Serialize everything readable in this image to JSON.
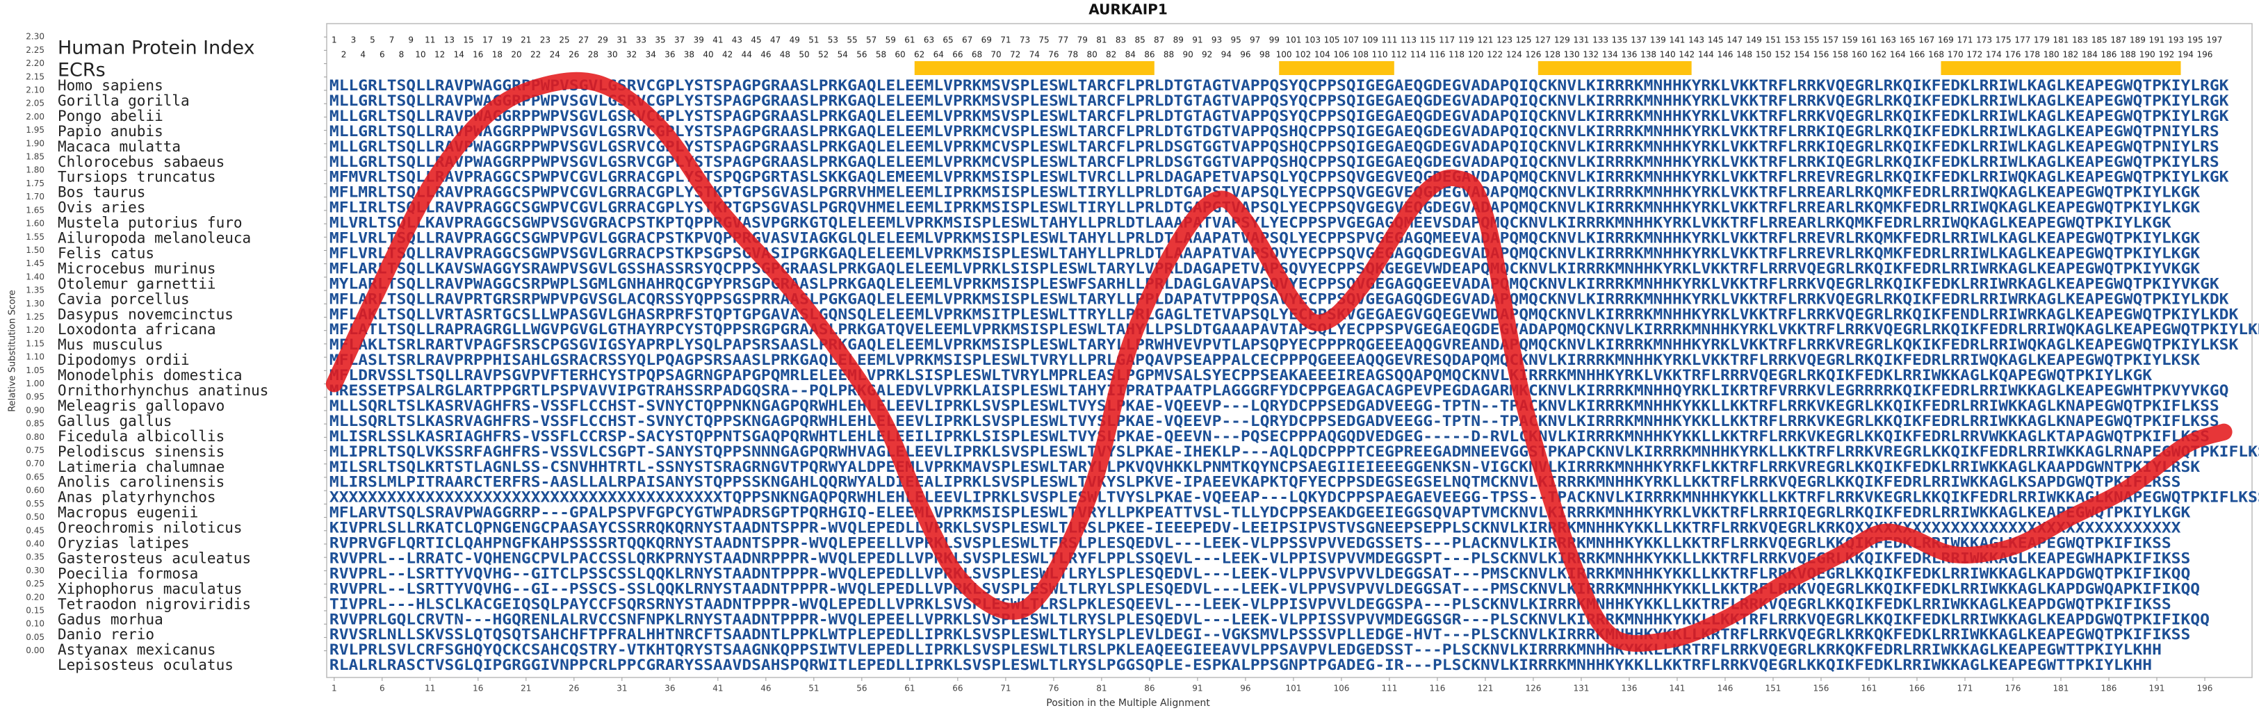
{
  "chart_data": {
    "type": "line",
    "title": "AURKAIP1",
    "xlabel": "Position in the Multiple Alignment",
    "ylabel": "Relative Substitution Score",
    "x": [
      1,
      5,
      11,
      17,
      23,
      29,
      35,
      41,
      47,
      52,
      58,
      62,
      66,
      71,
      75,
      80,
      84,
      89,
      93,
      96,
      101,
      104,
      108,
      114,
      118,
      121,
      125,
      130,
      134,
      140,
      146,
      152,
      158,
      162,
      165,
      170,
      176,
      182,
      188,
      194,
      198
    ],
    "series": [
      {
        "name": "Relative Substitution Score",
        "color": "#e41a1c",
        "values": [
          1.0,
          1.31,
          1.74,
          2.01,
          2.12,
          2.12,
          1.96,
          1.66,
          1.42,
          1.2,
          0.88,
          0.55,
          0.28,
          0.15,
          0.23,
          0.61,
          1.15,
          1.53,
          1.69,
          1.61,
          1.31,
          1.23,
          1.36,
          1.69,
          1.77,
          1.63,
          0.93,
          0.34,
          0.06,
          0.04,
          0.12,
          0.25,
          0.36,
          0.44,
          0.43,
          0.36,
          0.39,
          0.5,
          0.61,
          0.77,
          0.82
        ]
      }
    ],
    "xlim": [
      0,
      201
    ],
    "ylim": [
      -0.1,
      2.35
    ],
    "xticks": [
      1,
      6,
      11,
      16,
      21,
      26,
      31,
      36,
      41,
      46,
      51,
      56,
      61,
      66,
      71,
      76,
      81,
      86,
      91,
      96,
      101,
      106,
      111,
      116,
      121,
      126,
      131,
      136,
      141,
      146,
      151,
      156,
      161,
      166,
      171,
      176,
      181,
      186,
      191,
      196
    ],
    "yticks": [
      {
        "value": 0,
        "label": "0.00"
      },
      0.05,
      {
        "value": 0.1,
        "label": "0.10"
      },
      0.15,
      {
        "value": 0.2,
        "label": "0.20"
      },
      0.25,
      {
        "value": 0.3,
        "label": "0.30"
      },
      0.35,
      {
        "value": 0.4,
        "label": "0.40"
      },
      0.45,
      {
        "value": 0.5,
        "label": "0.50"
      },
      0.55,
      {
        "value": 0.6,
        "label": "0.60"
      },
      0.65,
      {
        "value": 0.7,
        "label": "0.70"
      },
      0.75,
      {
        "value": 0.8,
        "label": "0.80"
      },
      0.85,
      {
        "value": 0.9,
        "label": "0.90"
      },
      0.95,
      {
        "value": 1,
        "label": "1.00"
      },
      1.05,
      {
        "value": 1.1,
        "label": "1.10"
      },
      1.15,
      {
        "value": 1.2,
        "label": "1.20"
      },
      1.25,
      {
        "value": 1.3,
        "label": "1.30"
      },
      1.35,
      {
        "value": 1.4,
        "label": "1.40"
      },
      1.45,
      {
        "value": 1.5,
        "label": "1.50"
      },
      1.55,
      {
        "value": 1.6,
        "label": "1.60"
      },
      1.65,
      {
        "value": 1.7,
        "label": "1.70"
      },
      1.75,
      {
        "value": 1.8,
        "label": "1.80"
      },
      1.85,
      {
        "value": 1.9,
        "label": "1.90"
      },
      1.95,
      {
        "value": 2,
        "label": "2.00"
      },
      2.05,
      {
        "value": 2.1,
        "label": "2.10"
      },
      2.15,
      {
        "value": 2.2,
        "label": "2.20"
      },
      2.25,
      {
        "value": 2.3,
        "label": "2.30"
      }
    ],
    "alignment": {
      "index_label": "Human Protein Index",
      "index": [
        1,
        2,
        3,
        4,
        5,
        6,
        7,
        8,
        9,
        10,
        11,
        12,
        13,
        14,
        15,
        16,
        17,
        18,
        19,
        20,
        21,
        22,
        23,
        24,
        25,
        26,
        27,
        28,
        29,
        30,
        31,
        32,
        33,
        34,
        35,
        36,
        37,
        38,
        39,
        40,
        41,
        42,
        43,
        44,
        45,
        46,
        47,
        48,
        49,
        50,
        51,
        52,
        53,
        54,
        55,
        56,
        57,
        58,
        59,
        60,
        61,
        62,
        63,
        64,
        65,
        66,
        67,
        68,
        69,
        70,
        71,
        72,
        73,
        74,
        75,
        76,
        77,
        78,
        79,
        80,
        81,
        82,
        83,
        84,
        85,
        86,
        87,
        88,
        89,
        90,
        91,
        92,
        93,
        94,
        95,
        96,
        97,
        98,
        99,
        100,
        101,
        102,
        103,
        104,
        105,
        106,
        107,
        108,
        109,
        110,
        111,
        112,
        113,
        114,
        115,
        116,
        117,
        118,
        119,
        120,
        121,
        122,
        123,
        124,
        125,
        126,
        127,
        128,
        129,
        130,
        131,
        132,
        133,
        134,
        135,
        136,
        137,
        138,
        139,
        140,
        141,
        142,
        143,
        144,
        145,
        146,
        147,
        148,
        149,
        150,
        151,
        152,
        153,
        154,
        155,
        156,
        157,
        158,
        159,
        160,
        161,
        162,
        163,
        164,
        165,
        166,
        167,
        168,
        169,
        170,
        171,
        172,
        173,
        174,
        175,
        176,
        177,
        178,
        179,
        180,
        181,
        182,
        183,
        184,
        185,
        186,
        187,
        188,
        189,
        190,
        191,
        192,
        193,
        194,
        195,
        196,
        197
      ],
      "ecr_label": "ECRs",
      "ecr_color": "#ffc20e",
      "ecrs": [
        [
          62,
          86
        ],
        [
          100,
          111
        ],
        [
          127,
          142
        ],
        [
          169,
          193
        ]
      ],
      "rows": [
        {
          "species": "Homo sapiens",
          "sequence": "MLLGRLTSQLLRAVPWAGGRPPWPVSGVLGSRVCGPLYSTSPAGPGRAASLPRKGAQLELEEMLVPRKMSVSPLESWLTARCFLPRLDTGTAGTVAPPQSYQCPPSQIGEGAEQGDEGVADAPQIQCKNVLKIRRRKMNHHKYRKLVKKTRFLRRKVQEGRLRKQIKFEDKLRRIWLKAGLKEAPEGWQTPKIYLRGK"
        },
        {
          "species": "Gorilla gorilla",
          "sequence": "MLLGRLTSQLLRAVPWAGGRPPWPVSGVLGSRVCGPLYSTSPAGPGRAASLPRKGAQLELEEMLVPRKMSVSPLESWLTARCFLPRLDTGTAGTVAPPQSYQCPPSQIGEGAEQGDEGVADAPQIQCKNVLKIRRRKMNHHKYRKLVKKTRFLRRKVQEGRLRKQIKFEDKLRRIWLKAGLKEAPEGWQTPKIYLRGK"
        },
        {
          "species": "Pongo abelii",
          "sequence": "MLLGRLTSQLLRAVPWAGGRPPWPVSGVLGSRVCGPLYSTSPAGPGRAASLPRKGAQLELEEMLVPRKMSVSPLESWLTARCFLPRLDTGTAGTVAPPQSYQCPPSQIGEGAEQGDEGVADAPQIQCKNVLKIRRRKMNHHKYRKLVKKTRFLRRKVQEGRLRKQIKFEDKLRRIWLKAGLKEAPEGWQTPKIYLRGK"
        },
        {
          "species": "Papio anubis",
          "sequence": "MLLGRLTSQLLRAVPWAGGRPPWPVSGVLGSRVCGPLYSTSPAGPGRAASLPRKGAQLELEEMLVPRKMCVSPLESWLTARCFLPRLDTGTDGTVAPPQSHQCPPSQIGEGAEQGDEGVADAPQIQCKNVLKIRRRKMNHHKYRKLVKKTRFLRRKIQEGRLRKQIKFEDKLRRIWLKAGLKEAPEGWQTPNIYLRS"
        },
        {
          "species": "Macaca mulatta",
          "sequence": "MLLGRLTSQLLRAVPWAGGRPPWPVSGVLGSRVCGPLYSTSPAGPGRAASLPRKGAQLELEEMLVPRKMCVSPLESWLTARCFLPRLDSGTGGTVAPPQSHQCPPSQIGEGAEQGDEGVADAPQIQCKNVLKIRRRKMNHHKYRKLVKKTRFLRRKIQEGRLRKQIKFEDKLRRIWLKAGLKEAPEGWQTPNIYLRS"
        },
        {
          "species": "Chlorocebus sabaeus",
          "sequence": "MLLGRLTSQLLRAVPWAGGRPPWPVSGVLGSRVCGPLYSTSPAGPGRAASLPRKGAQLELEEMLVPRKMCVSPLESWLTARCFLPRLDSGTGGTVAPPQSHQCPPSQIGEGAEQGDEGVADAPQIQCKNVLKIRRRKMNHHKYRKLVKKTRFLRRKIQEGRLRKQIKFEDKLRRIWLKAGLKEAPEGWQTPKIYLRS"
        },
        {
          "species": "Tursiops truncatus",
          "sequence": "MFMVRLTSQLLRAVPRAGGCSPWPVCGVLGRRACGPLYSTSPQGPGRTASLSKKGAQLEMEEMLVPRKMSISPLESWLTVRCLLPRLDAGAPETVAPSQLYQCPPSQVGEGVEQGDEGAVDAPQMQCKNVLKIRRRKMNHHKYRKLVKKTRFLRREVREGRLRKQIKFEDKLRRIWQKAGLKEAPEGWQTPKIYLKGK"
        },
        {
          "species": "Bos taurus",
          "sequence": "MFLMRLTSQLLRAVPRAGGCSPWPVCGVLGRRACGPLYSTKPTGPSGVASLPGRRVHMELEEMLIPRKMSISPLESWLTIRYLLPRLDTGAPSTVAPSQLYECPPSQVGEGVEQGDEGVADAPQMQCKNVLKIRRRKMNHHKYRKLVKKTRFLRREARLRKQMKFEDRLRRIWQKAGLKEAPEGWQTPKIYLKGK"
        },
        {
          "species": "Ovis aries",
          "sequence": "MFLIRLTSQLLRAVPRAGGCSGWPVCGVLGRRACGPLYSTKPTGPSGVASLPGRQVHMELEEMLIPRKMSISPLESWLTIRYLLPRLDTGAPGTVAPSQLYECPPSQVGEGVEQGDEGVADAPQMQCKNVLKIRRRKMNHHKYRKLVKKTRFLRREARLRKQMKFEDRLRRIWQKAGLKEAPEGWQTPKIYLKGK"
        },
        {
          "species": "Mustela putorius furo",
          "sequence": "MLVRLTSQLLKAVPRAGGCSGWPVSGVGRACPSTKPTQPPRGVASVPGRKGTQLELEEMLVPRKMSISPLESWLTAHYLLPRLDTLAAAPATVAPSYLYECPPSPVGEGAGQMEEVSDAPQMQCKNVLKIRRRKMNHHKYRKLVKKTRFLRREARLRKQMKFEDRLRRIWQKAGLKEAPEGWQTPKIYLKGK"
        },
        {
          "species": "Ailuropoda melanoleuca",
          "sequence": "MFLVRLTSQLLRAVPRAGGCSGWPVPGVLGGRACPSTKPVQPPRGVASVIAGKGLQLELEEMLVPRKMSISPLESWLTAHYLLPRLDTLAAAPATVAPSQLYECPPSPVGEGAGQMEEVADAPQMQCKNVLKIRRRKMNHHKYRKLVKKTRFLRREVRLRKQMKFEDRLRRIWLKAGLKEAPEGWQTPKIYLKGK"
        },
        {
          "species": "Felis catus",
          "sequence": "MFLVRLTSQLLRAVPRAGGCSGWPVSGVLGRRACPSTKPSGPSGVASIPGRKGAQLELEEMLVPRKMSISPLESWLTAHYLLPRLDTLAAAPATVAPSQVYECPPSQVGEGAGQGDEGVADAPQMQCKNVLKIRRRKMNHHKYRKLVKKTRFLRREVRLRKQMKFEDRLRRIWLKAGLKEAPEGWQTPKIYLKGK"
        },
        {
          "species": "Microcebus murinus",
          "sequence": "MFLARLTSQLLKAVSWAGGYSRAWPVSGVLGSSHASSRSYQCPPSGPGRAASLPRKGAQLELEEMLVPRKLSISPLESWLTARYLVPRLDAGAPETVAPSQVYECPPSQKGEGEVWDEAPQMQCKNVLKIRRRKMNHHKYRKLVKKTRFLRRRVQEGRLRKQIKFEDRLRRIWRKAGLKEAPEGWQTPKIYVKGK"
        },
        {
          "species": "Otolemur garnettii",
          "sequence": "MYLARLTSQLLRAVPWAGGCSRPWPLSGMLGNHAHRQCGPYPRSGPGRAASLPRKGAQLELEEMLVPRKMSISPLESWFSARHLLPRLDAGLGAVAPSQVYECPPSQVGEGAGQGEEVADAPQMQCKNVLKIRRRKMNHHKYRKLVKKTRFLRRKVQEGRLRKQIKFEDKLRRIWRKAGLKEAPEGWQTPKIYVKGK"
        },
        {
          "species": "Cavia porcellus",
          "sequence": "MFLARLTSQLLRAVPRTGRSRPWPVPGVSGLACQRSSYQPPSGSPRRAASLPGKGAQLELEEMLVPRKMSISPLESWLTARYLLPPLDAPATVTPPQSAVYECPPSQVGEGAGQGDEGVADAPQMQCKNVLKIRRRKMNHHKYRKLVKKTRFLRRKVQEGRLRKQIKFEDRLRRIWRKAGLKEAPEGWQTPKIYLKDK"
        },
        {
          "species": "Dasypus novemcinctus",
          "sequence": "MFLAKLTSQLLVRTASRTGCSLLWPASGVLGHASRPRFSTQPTGPGAVASLGQNSQLELEEMLVPRKMSITPLESWLTTRYLLPRLGAGLTETVAPSQLYECPPSKVGEGAEGVGQEGEVWDAPQMQCKNVLKIRRRKMNHHKYRKLVKKTRFLRRKVQEGRLRKQIKFENDLRRIWRKAGLKEAPEGWQTPKIYLKDK"
        },
        {
          "species": "Loxodonta africana",
          "sequence": "MFLATLTSQLLRAPRAGRGLLWGVPGVGLGTHAYRPCYSTQPPSRGPGRAASLPRKGATQVELEEMLVPRKMSISPLESWLTAHYLLPSLDTGAAAPAVTAPSQLYECPPSPVGEGAEQGDEGVADAPQMQCKNVLKIRRRKMNHHKYRKLVKKTRFLRRKVQEGRLRKQIKFEDRLRRIWQKAGLKEAPEGWQTPKIYLKDK"
        },
        {
          "species": "Mus musculus",
          "sequence": "MFLAKLTSRLRARTVPAGFSRSCPGSGVIGSYAPRPLYSQLPAPSRSAASLPRKGAQLELEEMLVPRKMSISPLESWLTARYLLPRWHVEVPVTLAPSQPYECPPPRQGEEEAQQGVREANDAPQMQCKNVLKIRRRKMNHHKYRKLVKKTRFLRRKVREGRLKQKIKFEDRLRRIWQKAGLKEAPEGWQTPKIYLKSK"
        },
        {
          "species": "Dipodomys ordii",
          "sequence": "MFLASLTSRLRAVPRPPHISAHLGSRACRSSYQLPQAGPSRSAASLPRKGAQLELEEMLVPRKMSISPLESWLTVRYLLPRLGAPQAVPSEAPPALCECPPPQGEEEAQQGEVRESQDAPQMQCKNVLKIRRRKMNHHKYRKLVKKTRFLRRKVQEGRLRKQIKFEDRLRRIWQKAGLKEAPEGWQTPKIYLKSK"
        },
        {
          "species": "Monodelphis domestica",
          "sequence": "MFLDRVSSLTSQLLRAVPSGVPVFTERHCYSTPQPSAGRNGPAPGPQMRLELEEMLVPRKLSISPLESWLTVRYLMPRLEASLPGPMVSALSYECPPSEAKAEEEIREAGSQQAPQMQCKNVLKIRRRKMNHHKYRKLVKKTRFLRRRVQEGRLRKQIKFEDKLRRIWKKAGLKQAPEGWQTPKIYLKGK"
        },
        {
          "species": "Ornithorhynchus anatinus",
          "sequence": "MRESSETPSALRGLARTPPGRTLPSPVAVVIPGTRAHSSRPADGQSRA--PQLPRKGALEDVLVPRKLAISPLESWLTAHYIIPRATPAATPLAGGGRFYDCPPGEAGACAGPEVPEGDAGARMKCKNVLKIRRRKMNHHQYRKLIKRTRFVRRKVLEGRRRRKQIKFEDRLRRIWKKAGLKEAPEGWHTPKVYVKGQ"
        },
        {
          "species": "Meleagris gallopavo",
          "sequence": "MLLSQRLTSLKASRVAGHFRS-VSSFLCCHST-SVNYCTQPPNKNGAGPQRWHLEHLELEEVLIPRKLSVSPLESWLTVYSLPKAE-VQEEVP---LQRYDCPPSEDGADVEEGG-TPTN--TPACKNVLKIRRRKMNHHKYKKLLKKTRFLRRKVKEGRLKKQIKFEDRLRRIWKKAGLKNAPEGWQTPKIFLKSS"
        },
        {
          "species": "Gallus gallus",
          "sequence": "MLLSQRLTSLKASRVAGHFRS-VSSFLCCHST-SVNYCTQPPSKNGAGPQRWHLEHLELEEVLIPRKLSVSPLESWLTVYSLPKAE-VQEEVP---LQRYDCPPSEDGADVEEGG-TPTN--TPACKNVLKIRRRKMNHHKYKKLLKKTRFLRRKVKEGRLKKQIKFEDRLRRIWKKAGLKNAPEGWQTPKIFLKSS"
        },
        {
          "species": "Ficedula albicollis",
          "sequence": "MLISRLSSLKASRIAGHFRS-VSSFLCCRSP-SACYSTQPPNTSGAQPQRWHTLEHLELEEILIPRKLSISPLESWLTVYSLPKAE-QEEVN---PQSECPPPAQGQDVEDGEG-----D-RVLCKNVLKIRRRKMNHHKYKKLLKKTRFLRRKVKEGRLKKQIKFEDRLRRVWKKAGLKTAPAGWQTPKIFLKSS"
        },
        {
          "species": "Pelodiscus sinensis",
          "sequence": "MLIPRLTSQLVKSSRFAGHFRS-VSSVLCSGPT-SANYSTQPPSNNNGAGPQRWHVAGLELEEVLIPRKLSVSPLESWLTVYSLPKAE-IHEKLP---AQLQDCPPPTCEGPREEGADMNEEVGGSTPKAPCKNVLKIRRRKMNHHKYRKLLKKTRFLRRKVREGRLKKQIKFEDRLRRIWKKAGLRNAPEGWQTPKIFLKSS"
        },
        {
          "species": "Latimeria chalumnae",
          "sequence": "MILSRLTSQLKRTSTLAGNLSS-CSNVHHTRTL-SSNYSTSRAGRNGVTPQRWYALDPEEMLVPRKMAVSPLESWLTARYLLPKVQVHKKLPNMTKQYNCPSAEGIIEIEEEGGENKSN-VIGCKNVLKIRRRKMNHHKYRKFLKKTRFLRRKVREGRLKKQIKFEDKLRRIWKKAGLKAAPDGWNTPKIYLRSK"
        },
        {
          "species": "Anolis carolinensis",
          "sequence": "MLIRSLMLPITRAARCTERFRS-AASLLALRPAISANYSTQPPSSKNGAHLQQRWYALDIEEALIPRKLSVSPLESWLTVKYSLPKVE-IPAEEVKAPKTQFYECPPSDEGSEGSELNQTMCKNVLKIRRRKMNHHKYRKLLKKTRFLRRKVQEGRLKKQIKFEDRLRRIWKKAGLKSAPDGWQTPKIFLRSS"
        },
        {
          "species": "Anas platyrhynchos",
          "sequence": "XXXXXXXXXXXXXXXXXXXXXXXXXXXXXXXXXXXXXXXXXTQPPSNKNGAQPQRWHLEHLELEEVLIPRKLSVSPLESWLTVYSLPKAE-VQEEAP---LQKYDCPPSPAEGAEVEEGG-TPSS--TPACKNVLKIRRRKMNHHKYKKLLKKTRFLRRKVKEGRLKKQIKFEDRLRRIWKKAGLKNAPEGWQTPKIFLKSS"
        },
        {
          "species": "Macropus eugenii",
          "sequence": "MFLARVTSQLSRAVPWAGGRRP---GPALPSPVFGPCYGTWPADRSGPTPQRHGIQ-ELEEMLVPRKMSISPLESWLTVRYLLPKPEATTVSL-TLLYDCPPSEAKDGEEIEGGSQVAPTVMCKNVLKIRRRKMNHHKYRKLVKKTRFLRRRIQEGRLRKQIKFEDRLRRIWKKAGLKEAPEGWQTPKIYLKGK"
        },
        {
          "species": "Oreochromis niloticus",
          "sequence": "KIVPRLSLLRKATCLQPNGENGCPAASAYCSSRRQKQRNYSTAADNTSPPR-WVQLEPEDLLVPRKLSVSPLESWLTLRSLPKEE-IEEEPEDV-LEEIPSIPVSTVSGNEEPSEPPLSCKNVLKIRRRKMNHHKYKKLLKKTRFLRRKVQEGRLKRKQXXXXXXXXXXXXXXXXXXXXXXXXXXXXXXXXXX"
        },
        {
          "species": "Oryzias latipes",
          "sequence": "RVPRVGFLQRTICLQAHPNGFKAHPSSSSRTQQKQRNYSTAADNTSPPR-WVQLEPEELLVPRKLSVSPLESWLTFRSLPLESQEDVL---LEEK-VLPPSSVPVVEDGSSETS---PLACKNVLKIRRRKMNHHKYKKLLKKTRFLRRKVQEGRLKKQIKFEDKLRRIWKKAGLKEAPEGWQTPKIFIKSS"
        },
        {
          "species": "Gasterosteus aculeatus",
          "sequence": "RVVPRL--LRRATC-VQHENGCPVLPACCSSLQRKPRNYSTAADNRPPPR-WVQLEPEDLLVPRKLSVSPLESWLTLRYFLPPLSSQEVL---LEEK-VLPPISVPVVMDEGGSPT---PLSCKNVLKIRRRKMNHHKYKKLLKKTRFLRRKVQEGRLKKQIKFEDRLRRIWKKAGLKEAPEGWHAPKIFIKSS"
        },
        {
          "species": "Poecilia formosa",
          "sequence": "RVVPRL--LSRTTYVQVHG--GITCLPSSCSSLQQKLRNYSTAADNTPPPR-WVQLEPEDLLVPRKLSVSPLESWLTLRYLSPLESQEDVL---LEEK-VLPPVSVPVVLDEGGSAT---PMSCKNVLKIRRRKMNHHKYKKLLKKTRFLRRKVQEGRLKKQIKFEDKLRRIWKKAGLKAPDGWQTPKIFIKQQ"
        },
        {
          "species": "Xiphophorus maculatus",
          "sequence": "RVVPRL--LSRTTYVQVHG--GI--PSSCS-SSLQQKLRNYSTAADNTPPPR-WVQLEPEDLLVPRKLSVSPLESWLTLRYLSPLESQEDVL---LEEK-VLPPVSVPVVLDEGGSAT---PMSCKNVLKIRRRKMNHHKYKKLLKKTRFLRRKVQEGRLKKQIKFEDKLRRIWKKAGLKAPDGWQAPKIFIKQQ"
        },
        {
          "species": "Tetraodon nigroviridis",
          "sequence": "TIVPRL---HLSCLKACGEIQSQLPAYCCFSQRSRNYSTAADNTPPPR-WVQLEPEDLLVPRKLSVSPLESWLTLRSLPKLESQEEVL---LEEK-VLPPISVPVVLDEGGSPA---PLSCKNVLKIRRRKMNHHKYKKLLKKTRFLRRKVQEGRLKKQIKFEDKLRRIWKKAGLKEAPDGWQTPKIFIKSS"
        },
        {
          "species": "Gadus morhua",
          "sequence": "RVVPRLGQLCRVTN---HGQRENLALRVCCSNFNPKLRNYSTAADNTPPPR-WVQLEPEELLVPRKLSVSPLESWLTLRYSLPLESQEDVL---LEEK-VLPPISSVPVVMDEGGSGR---PLSCKNVLKIRRRKMNHHKYKKLLKKTRFLRRKVQEGRLKKQIKFEDKLRRIWKKAGLKEAPDGWQTPKIFIKQQ"
        },
        {
          "species": "Danio rerio",
          "sequence": "RVVSRLNLLSKVSSLQTQSQTSAHCHFTPFRALHHTNRCFTSAADNTLPPKLWTPLEPEDLLIPRKLSVSPLESWLTLRYSLPLEVLDEGI--VGKSMVLPSSSVPLLEDGE-HVT---PLSCKNVLKIRRRKMNHHKYKKLLKRTRFLRRKVQEGRLKRKQKFEDKLRRIWKKAGLKEAPEGWQTPKIFIKSS"
        },
        {
          "species": "Astyanax mexicanus",
          "sequence": "RVLPRLSVLCRFSGHQYQCKCSAHCQSTRY-VTKHTQRYSTSAAGNKQPPSIWTVLEPEDLLIPRKLSVSPLESWLTLRSLPKLEAQEEGIEEAVVLPPSAVPVLEDGEDSST---PLSCKNVLKIRRRKMNHHKYKKLLKRTRFLRRKVQEGRLKRKQKFEDRLRRIWKKAGLKEAPEGWTTPKIYLKHH"
        },
        {
          "species": "Lepisosteus oculatus",
          "sequence": "RLALRLRASCTVSGLQIPGRGGIVNPPCRLPPCGRARYSSAAVDSAHSPQRWITLEPEDLLIPRKLSVSPLESWLTLRYSLPGGSQPLE-ESPKALPPSGNPTPGADEG-IR---PLSCKNVLKIRRRKMNHHKYKKLLKKTRFLRRKVQEGRLKKQIKFEDKLRRIWKKAGLKEAPEGWTTPKIYLKHH"
        }
      ]
    }
  }
}
